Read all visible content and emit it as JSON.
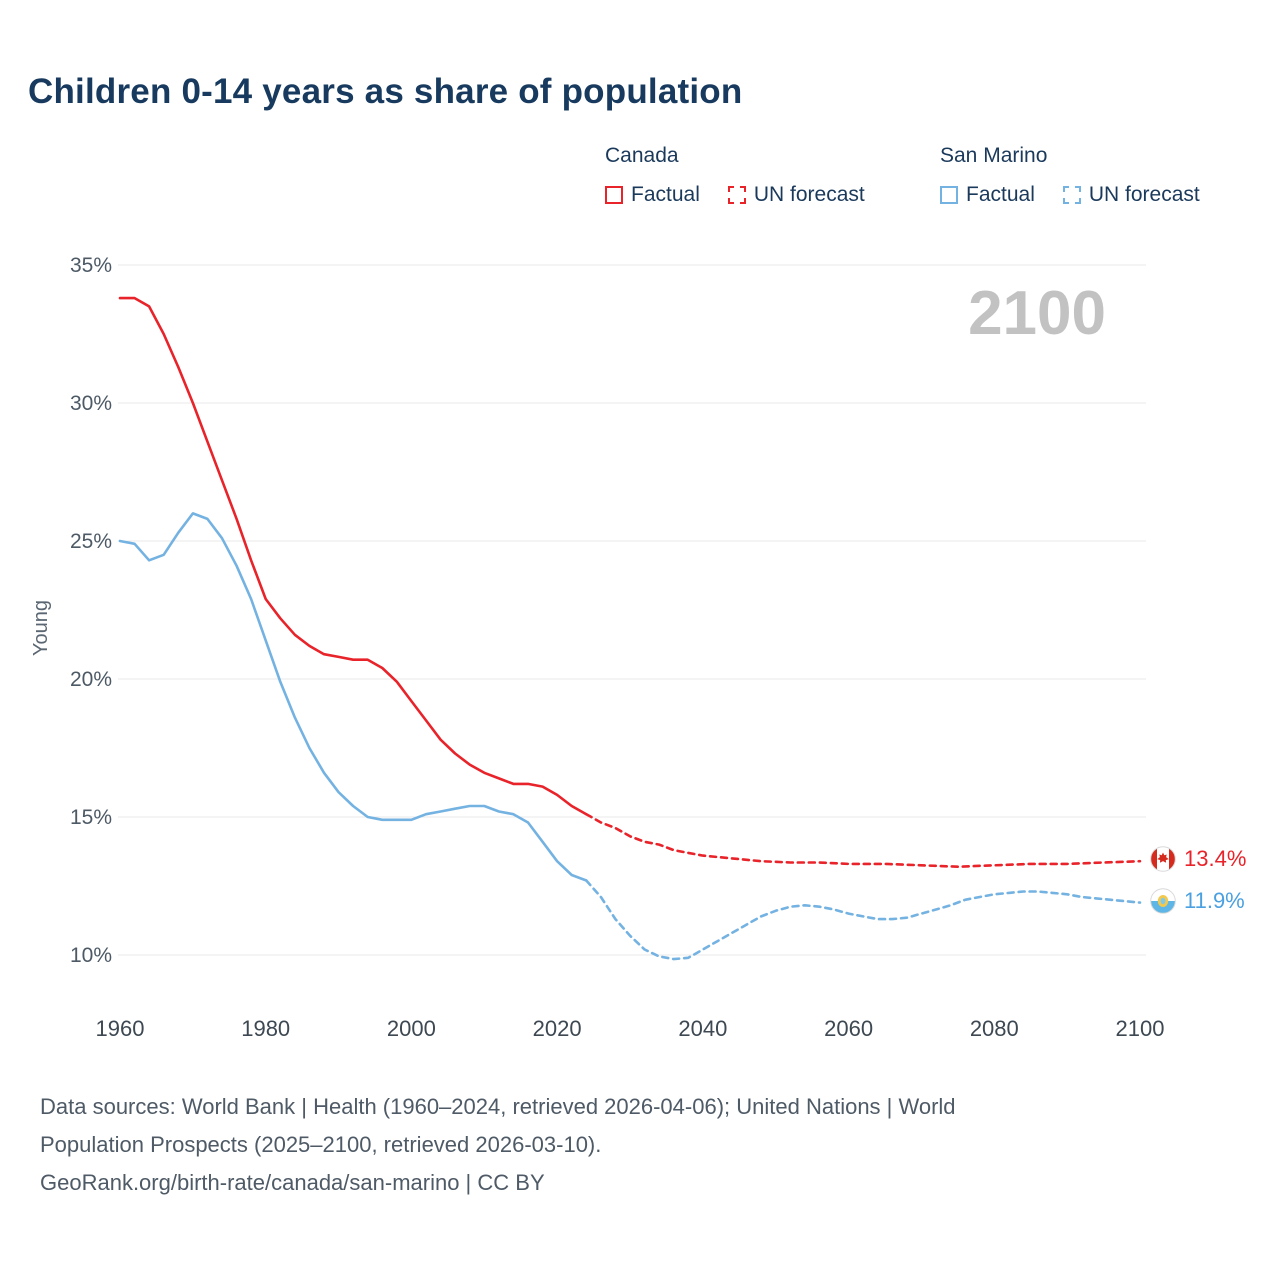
{
  "title": "Children 0-14 years as share of population",
  "watermark": "2100",
  "y_axis_title": "Young",
  "legend": {
    "groups": [
      {
        "name": "Canada",
        "color": "#e8232a",
        "items": [
          {
            "label": "Factual",
            "style": "solid"
          },
          {
            "label": "UN forecast",
            "style": "dashed"
          }
        ]
      },
      {
        "name": "San Marino",
        "color": "#74b2e2",
        "items": [
          {
            "label": "Factual",
            "style": "solid"
          },
          {
            "label": "UN forecast",
            "style": "dashed"
          }
        ]
      }
    ]
  },
  "end_labels": [
    {
      "country": "Canada",
      "value": "13.4%",
      "color": "#e8232a",
      "icon": "canada-flag"
    },
    {
      "country": "San Marino",
      "value": "11.9%",
      "color": "#4aa0e0",
      "icon": "san-marino-flag"
    }
  ],
  "footer": {
    "lines": [
      "Data sources: World Bank | Health (1960–2024, retrieved 2026-04-06); United Nations | World",
      "Population Prospects (2025–2100, retrieved 2026-03-10).",
      "GeoRank.org/birth-rate/canada/san-marino | CC BY"
    ]
  },
  "chart_data": {
    "type": "line",
    "title": "Children 0-14 years as share of population",
    "xlabel": "",
    "ylabel": "Young",
    "xlim": [
      1960,
      2100
    ],
    "ylim": [
      10,
      35
    ],
    "grid": "horizontal",
    "legend_position": "top-right",
    "x_ticks": [
      1960,
      1980,
      2000,
      2020,
      2040,
      2060,
      2080,
      2100
    ],
    "y_ticks": [
      35,
      30,
      25,
      20,
      15,
      10
    ],
    "y_tick_suffix": "%",
    "series": [
      {
        "name": "Canada Factual",
        "color": "#e8232a",
        "style": "solid",
        "x": [
          1960,
          1962,
          1964,
          1966,
          1968,
          1970,
          1972,
          1974,
          1976,
          1978,
          1980,
          1982,
          1984,
          1986,
          1988,
          1990,
          1992,
          1994,
          1996,
          1998,
          2000,
          2002,
          2004,
          2006,
          2008,
          2010,
          2012,
          2014,
          2016,
          2018,
          2020,
          2022,
          2024
        ],
        "y": [
          33.8,
          33.8,
          33.5,
          32.5,
          31.3,
          30.0,
          28.6,
          27.2,
          25.8,
          24.3,
          22.9,
          22.2,
          21.6,
          21.2,
          20.9,
          20.8,
          20.7,
          20.7,
          20.4,
          19.9,
          19.2,
          18.5,
          17.8,
          17.3,
          16.9,
          16.6,
          16.4,
          16.2,
          16.2,
          16.1,
          15.8,
          15.4,
          15.1
        ]
      },
      {
        "name": "Canada UN forecast",
        "color": "#e8232a",
        "style": "dashed",
        "x": [
          2024,
          2026,
          2028,
          2030,
          2032,
          2034,
          2036,
          2038,
          2040,
          2044,
          2048,
          2052,
          2056,
          2060,
          2065,
          2070,
          2075,
          2080,
          2085,
          2090,
          2095,
          2100
        ],
        "y": [
          15.1,
          14.8,
          14.6,
          14.3,
          14.1,
          14.0,
          13.8,
          13.7,
          13.6,
          13.5,
          13.4,
          13.35,
          13.35,
          13.3,
          13.3,
          13.25,
          13.2,
          13.25,
          13.3,
          13.3,
          13.35,
          13.4
        ]
      },
      {
        "name": "San Marino Factual",
        "color": "#74b2e2",
        "style": "solid",
        "x": [
          1960,
          1962,
          1964,
          1966,
          1968,
          1970,
          1972,
          1974,
          1976,
          1978,
          1980,
          1982,
          1984,
          1986,
          1988,
          1990,
          1992,
          1994,
          1996,
          1998,
          2000,
          2002,
          2004,
          2006,
          2008,
          2010,
          2012,
          2014,
          2016,
          2018,
          2020,
          2022,
          2024
        ],
        "y": [
          25.0,
          24.9,
          24.3,
          24.5,
          25.3,
          26.0,
          25.8,
          25.1,
          24.1,
          22.9,
          21.4,
          19.9,
          18.6,
          17.5,
          16.6,
          15.9,
          15.4,
          15.0,
          14.9,
          14.9,
          14.9,
          15.1,
          15.2,
          15.3,
          15.4,
          15.4,
          15.2,
          15.1,
          14.8,
          14.1,
          13.4,
          12.9,
          12.7
        ]
      },
      {
        "name": "San Marino UN forecast",
        "color": "#74b2e2",
        "style": "dashed",
        "x": [
          2024,
          2026,
          2028,
          2030,
          2032,
          2034,
          2036,
          2038,
          2040,
          2042,
          2044,
          2046,
          2048,
          2050,
          2052,
          2054,
          2056,
          2058,
          2060,
          2062,
          2064,
          2066,
          2068,
          2070,
          2072,
          2074,
          2076,
          2078,
          2080,
          2082,
          2084,
          2086,
          2088,
          2090,
          2092,
          2094,
          2096,
          2098,
          2100
        ],
        "y": [
          12.7,
          12.1,
          11.3,
          10.7,
          10.2,
          9.95,
          9.85,
          9.9,
          10.2,
          10.5,
          10.8,
          11.1,
          11.4,
          11.6,
          11.75,
          11.8,
          11.75,
          11.65,
          11.5,
          11.4,
          11.3,
          11.3,
          11.35,
          11.5,
          11.65,
          11.8,
          12.0,
          12.1,
          12.2,
          12.25,
          12.3,
          12.3,
          12.25,
          12.2,
          12.1,
          12.05,
          12.0,
          11.95,
          11.9
        ]
      }
    ]
  }
}
